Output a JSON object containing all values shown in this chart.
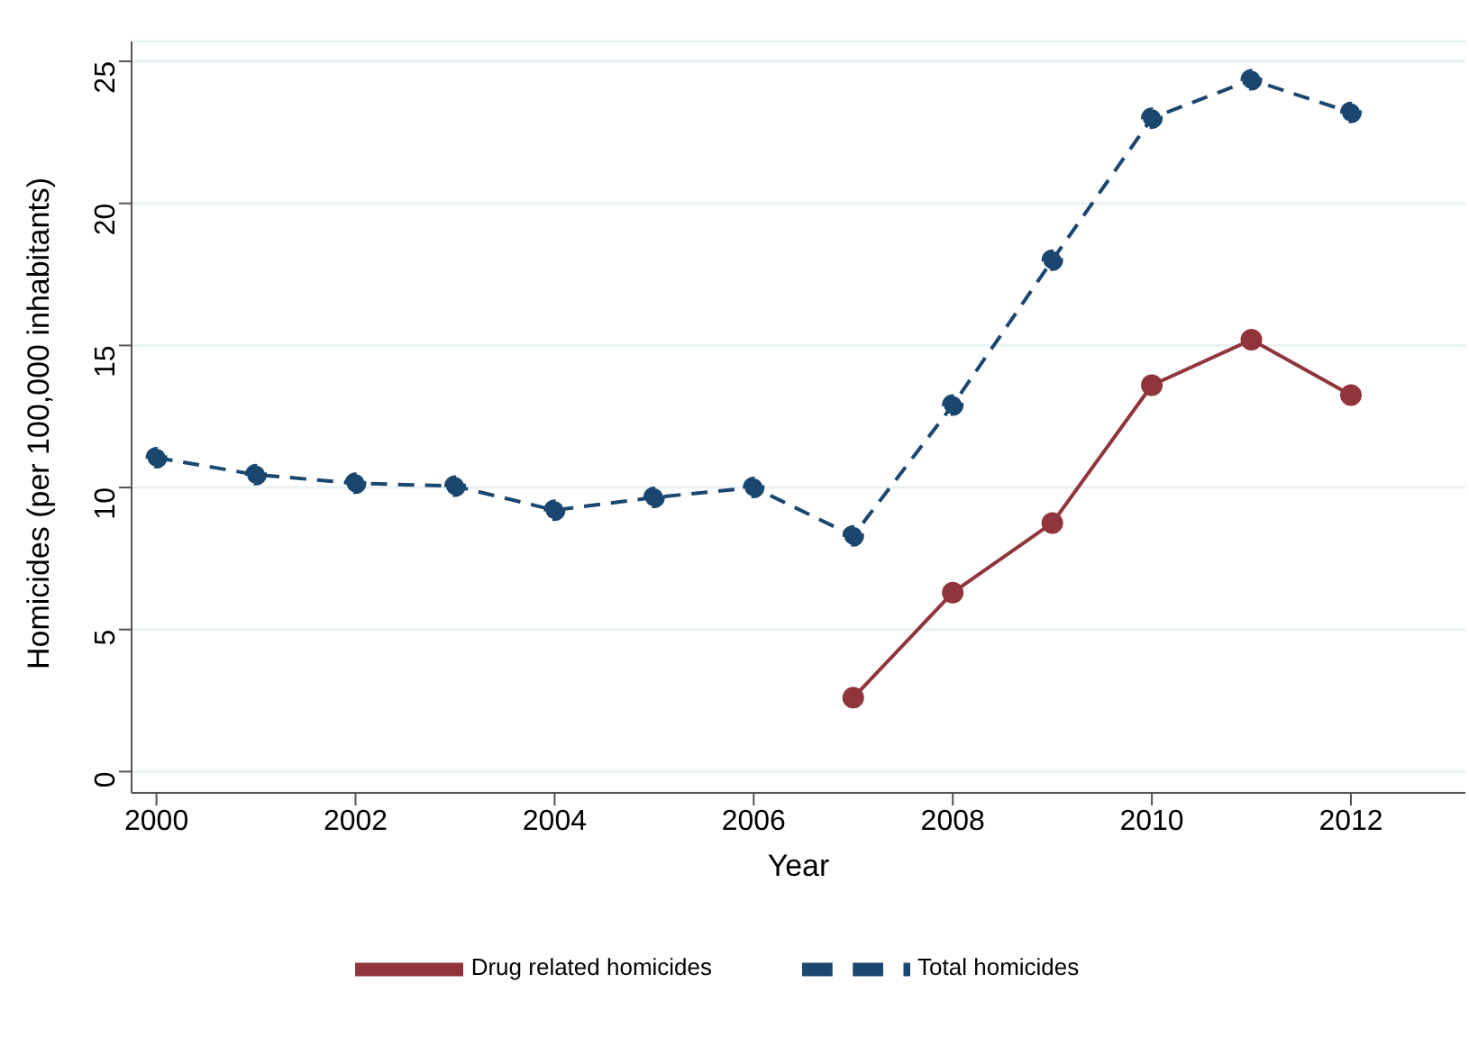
{
  "chart_data": {
    "type": "line",
    "xlabel": "Year",
    "ylabel": "Homicides (per 100,000 inhabitants)",
    "x": [
      2000,
      2001,
      2002,
      2003,
      2004,
      2005,
      2006,
      2007,
      2008,
      2009,
      2010,
      2011,
      2012
    ],
    "series": [
      {
        "name": "Total homicides",
        "color": "#1a476f",
        "line_style": "dashed",
        "values": [
          11.05,
          10.45,
          10.15,
          10.05,
          9.2,
          9.65,
          10.0,
          8.3,
          12.9,
          18.0,
          23.0,
          24.35,
          23.2
        ]
      },
      {
        "name": "Drug related homicides",
        "color": "#90353b",
        "line_style": "solid",
        "values": [
          null,
          null,
          null,
          null,
          null,
          null,
          null,
          2.6,
          6.3,
          8.75,
          13.6,
          15.2,
          13.25
        ]
      }
    ],
    "xlim": [
      1999.75,
      2013.15
    ],
    "xticks": [
      2000,
      2002,
      2004,
      2006,
      2008,
      2010,
      2012
    ],
    "ylim": [
      -0.75,
      25.7
    ],
    "yticks": [
      0,
      5,
      10,
      15,
      20,
      25
    ],
    "grid": "y",
    "legend": "bottom",
    "marker": "circle"
  }
}
